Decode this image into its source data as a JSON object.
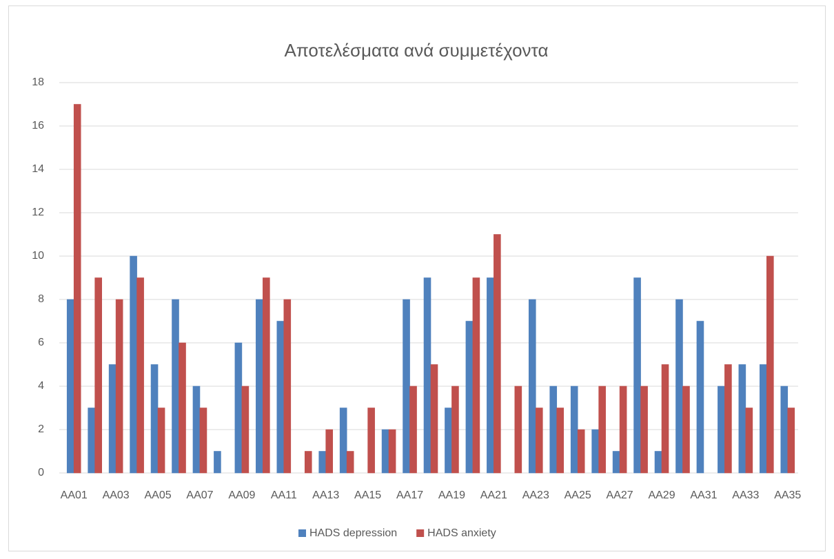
{
  "chart_data": {
    "type": "bar",
    "title": "Αποτελέσματα ανά συμμετέχοντα",
    "categories": [
      "AA01",
      null,
      "AA03",
      null,
      "AA05",
      null,
      "AA07",
      null,
      "AA09",
      null,
      "AA11",
      null,
      "AA13",
      null,
      "AA15",
      null,
      "AA17",
      null,
      "AA19",
      null,
      "AA21",
      null,
      "AA23",
      null,
      "AA25",
      null,
      "AA27",
      null,
      "AA29",
      null,
      "AA31",
      null,
      "AA33",
      null,
      "AA35"
    ],
    "series": [
      {
        "name": "HADS depression",
        "color": "#4f81bd",
        "values": [
          8,
          3,
          5,
          10,
          5,
          8,
          4,
          1,
          6,
          8,
          7,
          0,
          1,
          3,
          0,
          2,
          8,
          9,
          3,
          7,
          9,
          0,
          8,
          4,
          4,
          2,
          1,
          9,
          1,
          8,
          7,
          4,
          5,
          5,
          4
        ]
      },
      {
        "name": "HADS anxiety",
        "color": "#c0504d",
        "values": [
          17,
          9,
          8,
          9,
          3,
          6,
          3,
          0,
          4,
          9,
          8,
          1,
          2,
          1,
          3,
          2,
          4,
          5,
          4,
          9,
          11,
          4,
          3,
          3,
          2,
          4,
          4,
          4,
          5,
          4,
          0,
          5,
          3,
          10,
          3
        ]
      }
    ],
    "ylim": [
      0,
      18
    ],
    "yticks": [
      0,
      2,
      4,
      6,
      8,
      10,
      12,
      14,
      16,
      18
    ],
    "grid": true,
    "legend": "bottom"
  }
}
